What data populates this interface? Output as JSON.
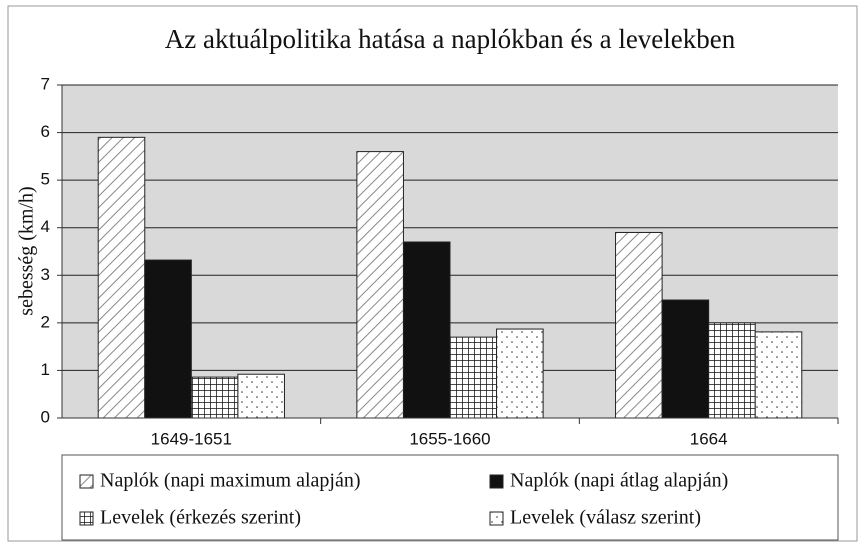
{
  "chart_data": {
    "type": "bar",
    "title": "Az aktuálpolitika hatása a naplókban és a levelekben",
    "y_label": "sebesség (km/h)",
    "categories": [
      "1649-1651",
      "1655-1660",
      "1664"
    ],
    "series": [
      {
        "name": "Naplók (napi maximum alapján)",
        "color": "#ffffff",
        "pattern": "diagonal",
        "values": [
          5.9,
          5.6,
          3.9
        ]
      },
      {
        "name": "Naplók (napi átlag alapján)",
        "color": "#111111",
        "pattern": "solid",
        "values": [
          3.32,
          3.7,
          2.48
        ]
      },
      {
        "name": "Levelek (érkezés szerint)",
        "color": "#ffffff",
        "pattern": "grid",
        "values": [
          0.86,
          1.7,
          2.0
        ]
      },
      {
        "name": "Levelek (válasz szerint)",
        "color": "#ffffff",
        "pattern": "dots",
        "values": [
          0.92,
          1.87,
          1.81
        ]
      }
    ],
    "ylim": [
      0,
      7
    ],
    "yticks": [
      0,
      1,
      2,
      3,
      4,
      5,
      6,
      7
    ],
    "grid": true,
    "legend": "bottom"
  }
}
